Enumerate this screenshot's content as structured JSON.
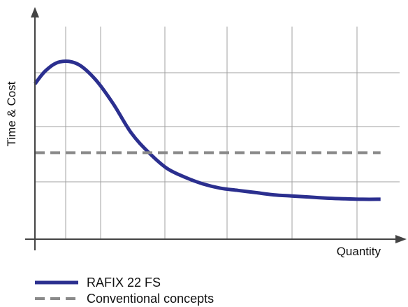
{
  "chart_data": {
    "type": "line",
    "title": "",
    "xlabel": "Quantity",
    "ylabel": "Time & Cost",
    "xlim": [
      0,
      10
    ],
    "ylim": [
      0,
      10
    ],
    "grid": true,
    "ticks_labeled": false,
    "legend_position": "bottom-left",
    "series": [
      {
        "name": "RAFIX 22 FS",
        "style": "solid",
        "color": "#2b2f8f",
        "x": [
          0,
          0.3,
          0.7,
          1.2,
          1.7,
          2.2,
          2.7,
          3.2,
          3.7,
          4.2,
          4.7,
          5.2,
          5.7,
          6.2,
          6.7,
          7.2,
          7.7,
          8.2,
          8.7,
          9.2,
          9.7
        ],
        "y": [
          7.0,
          7.6,
          8.0,
          7.9,
          7.2,
          6.1,
          4.8,
          3.9,
          3.2,
          2.8,
          2.5,
          2.3,
          2.2,
          2.1,
          2.0,
          1.95,
          1.9,
          1.85,
          1.82,
          1.8,
          1.8
        ]
      },
      {
        "name": "Conventional concepts",
        "style": "dashed",
        "color": "#8a8a8a",
        "x": [
          0,
          9.7
        ],
        "y": [
          3.9,
          3.9
        ]
      }
    ]
  },
  "colors": {
    "axis": "#444444",
    "grid": "#a0a0a0"
  }
}
